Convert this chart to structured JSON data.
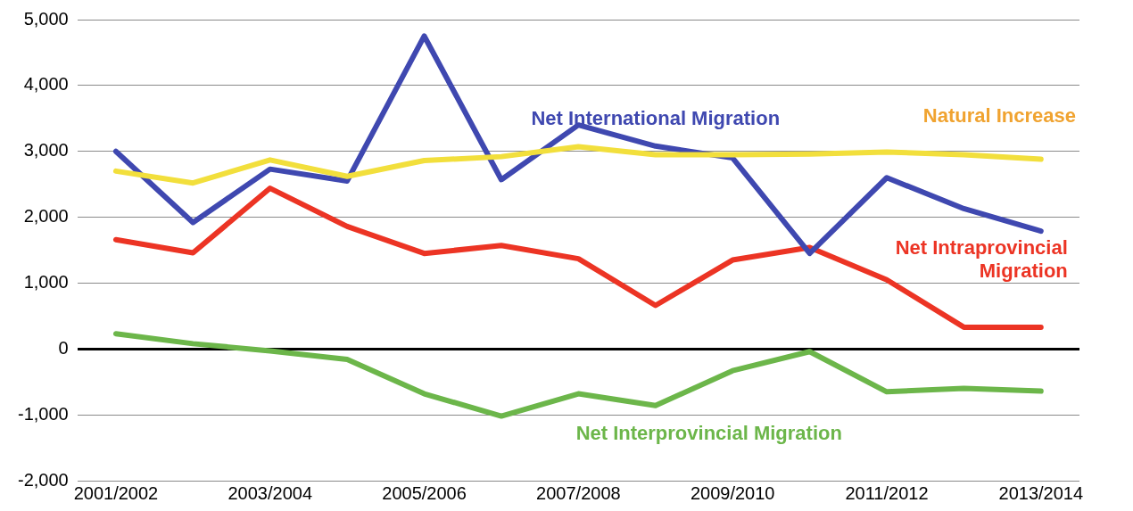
{
  "chart_data": {
    "type": "line",
    "categories": [
      "2001/2002",
      null,
      "2003/2004",
      null,
      "2005/2006",
      null,
      "2007/2008",
      null,
      "2009/2010",
      null,
      "2011/2012",
      null,
      "2013/2014"
    ],
    "series": [
      {
        "name": "Natural Increase",
        "color": "#f2df3c",
        "values": [
          2700,
          2520,
          2870,
          2620,
          2860,
          2920,
          3070,
          2950,
          2950,
          2960,
          2990,
          2950,
          2880
        ]
      },
      {
        "name": "Net International Migration",
        "color": "#3f48b0",
        "values": [
          3000,
          1920,
          2730,
          2550,
          4750,
          2570,
          3400,
          3080,
          2900,
          1450,
          2600,
          2130,
          1790
        ]
      },
      {
        "name": "Net Intraprovincial Migration",
        "color": "#ec3424",
        "values": [
          1660,
          1460,
          2440,
          1860,
          1450,
          1570,
          1370,
          660,
          1350,
          1540,
          1050,
          330,
          330
        ]
      },
      {
        "name": "Net Interprovincial Migration",
        "color": "#6cb64a",
        "values": [
          230,
          80,
          -30,
          -160,
          -680,
          -1020,
          -680,
          -860,
          -330,
          -40,
          -650,
          -600,
          -640
        ]
      }
    ],
    "ylim": [
      -2000,
      5000
    ],
    "yticks": [
      {
        "value": -2000,
        "label": "-2,000"
      },
      {
        "value": -1000,
        "label": "-1,000"
      },
      0,
      {
        "value": 1000,
        "label": "1,000"
      },
      {
        "value": 2000,
        "label": "2,000"
      },
      {
        "value": 3000,
        "label": "3,000"
      },
      {
        "value": 4000,
        "label": "4,000"
      },
      {
        "value": 5000,
        "label": "5,000"
      }
    ],
    "grid": "y",
    "legend": false,
    "marker": "none",
    "line_style": "solid"
  }
}
